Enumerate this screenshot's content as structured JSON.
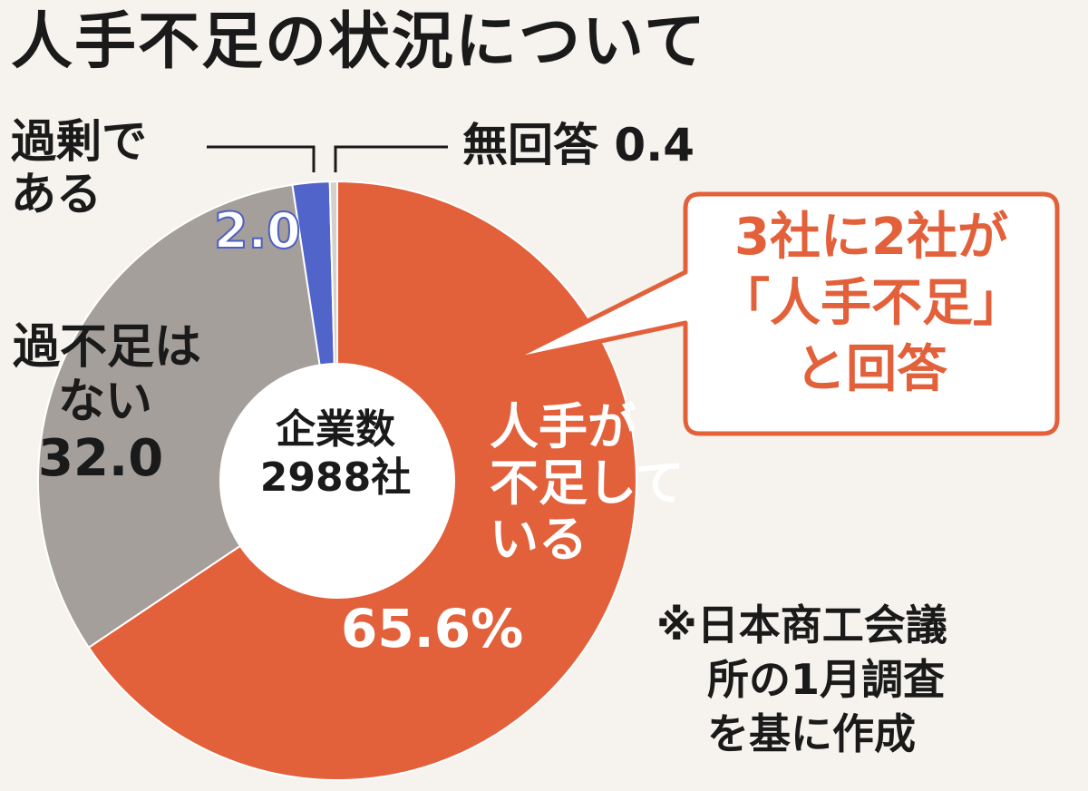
{
  "chart_data": {
    "type": "pie",
    "variant": "donut",
    "title": "人手不足の状況について",
    "center_label": [
      "企業数",
      "2988社"
    ],
    "slices": [
      {
        "label": "人手が不足している",
        "value": 65.6,
        "display": "65.6%",
        "color": "#e2603a"
      },
      {
        "label": "過不足はない",
        "value": 32.0,
        "display": "32.0",
        "color": "#a49f9b"
      },
      {
        "label": "過剰である",
        "value": 2.0,
        "display": "2.0",
        "color": "#5064c9"
      },
      {
        "label": "無回答",
        "value": 0.4,
        "display": "0.4",
        "color": "#d4d0cb"
      }
    ],
    "callout": [
      "3社に2社が",
      "「人手不足」",
      "と回答"
    ],
    "note": [
      "※日本商工会議",
      "所の1月調査",
      "を基に作成"
    ]
  },
  "labels": {
    "shortage_lines": [
      "人手が",
      "不足して",
      "いる"
    ],
    "neither_lines": [
      "過不足は",
      "ない"
    ],
    "excess_lines": [
      "過剰で",
      "ある"
    ],
    "none_label": "無回答"
  }
}
